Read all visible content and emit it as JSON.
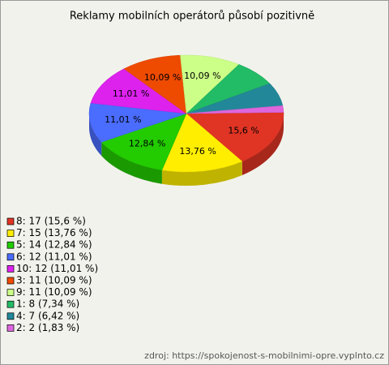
{
  "chart_data": {
    "type": "pie3d",
    "title": "Reklamy mobilních operátorů působí pozitivně",
    "categories": [
      "8",
      "7",
      "5",
      "6",
      "10",
      "3",
      "9",
      "1",
      "4",
      "2"
    ],
    "values": [
      17,
      15,
      14,
      12,
      12,
      11,
      11,
      8,
      7,
      2
    ],
    "value_labels": [
      "15,6 %",
      "13,76 %",
      "12,84 %",
      "11,01 %",
      "11,01 %",
      "10,09 %",
      "10,09 %",
      null,
      null,
      null
    ],
    "legend_labels": [
      "8: 17 (15,6 %)",
      "7: 15 (13,76 %)",
      "5: 14 (12,84 %)",
      "6: 12 (11,01 %)",
      "10: 12 (11,01 %)",
      "3: 11 (10,09 %)",
      "9: 11 (10,09 %)",
      "1: 8 (7,34 %)",
      "4: 7 (6,42 %)",
      "2: 2 (1,83 %)"
    ],
    "colors": [
      "#e03424",
      "#ffee00",
      "#22cc00",
      "#4a6cff",
      "#dd22ee",
      "#ee4a00",
      "#ccff88",
      "#22bb66",
      "#228899",
      "#dd66dd"
    ],
    "source": "zdroj: https://spokojenost-s-mobilnimi-opre.vyplnto.cz"
  }
}
